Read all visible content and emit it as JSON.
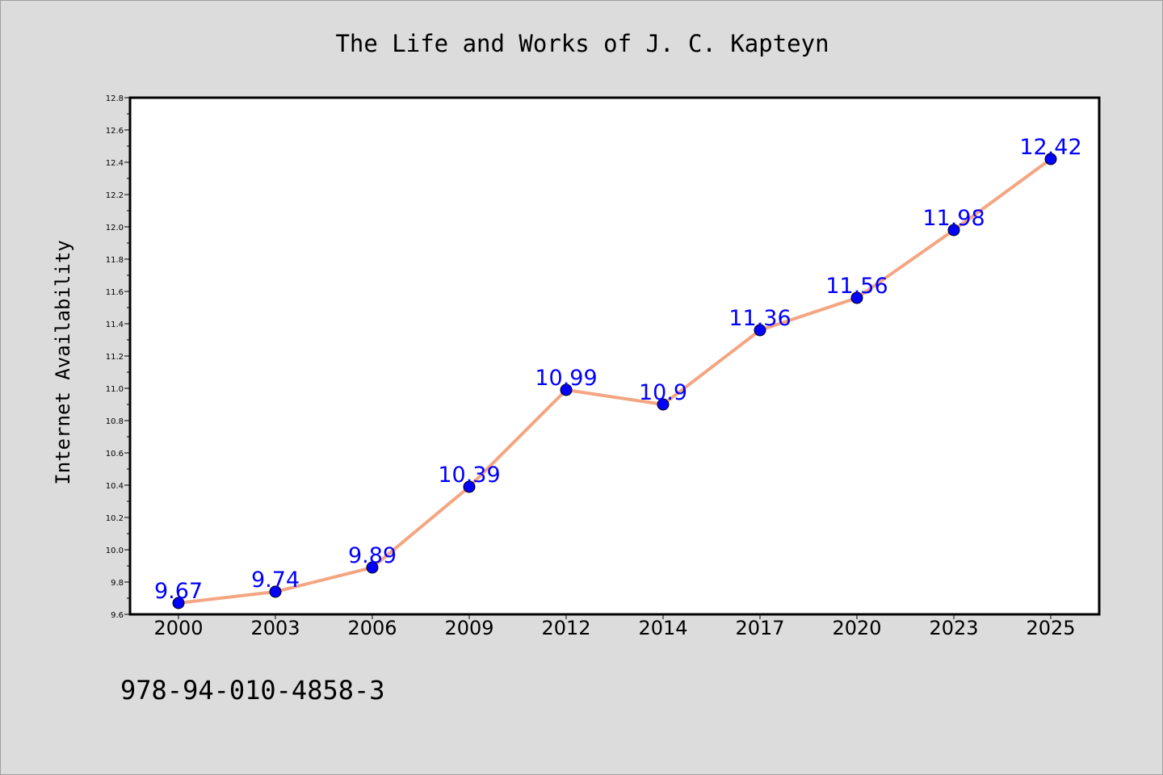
{
  "footer": {
    "isbn": "978-94-010-4858-3"
  },
  "chart_data": {
    "type": "line",
    "title": "The Life and Works of J. C. Kapteyn",
    "xlabel": "",
    "ylabel": "Internet Availability",
    "categories": [
      "2000",
      "2003",
      "2006",
      "2009",
      "2012",
      "2014",
      "2017",
      "2020",
      "2023",
      "2025"
    ],
    "series": [
      {
        "values": [
          9.67,
          9.74,
          9.89,
          10.39,
          10.99,
          10.9,
          11.36,
          11.56,
          11.98,
          12.42
        ],
        "data_labels": [
          "9.67",
          "9.74",
          "9.89",
          "10.39",
          "10.99",
          "10.9",
          "11.36",
          "11.56",
          "11.98",
          "12.42"
        ]
      }
    ],
    "ylim": [
      9.6,
      12.8
    ],
    "yticks": [
      "9.6",
      "9.8",
      "10.0",
      "10.2",
      "10.4",
      "10.6",
      "10.8",
      "11.0",
      "11.2",
      "11.4",
      "11.6",
      "11.8",
      "12.0",
      "12.2",
      "12.4",
      "12.6",
      "12.8"
    ],
    "grid": false,
    "legend": "none",
    "colors": {
      "line": "#f4a582",
      "marker": "#0000ff",
      "data_label": "#0000ff",
      "plot_background": "#ffffff",
      "figure_background": "#dcdcdc"
    }
  }
}
